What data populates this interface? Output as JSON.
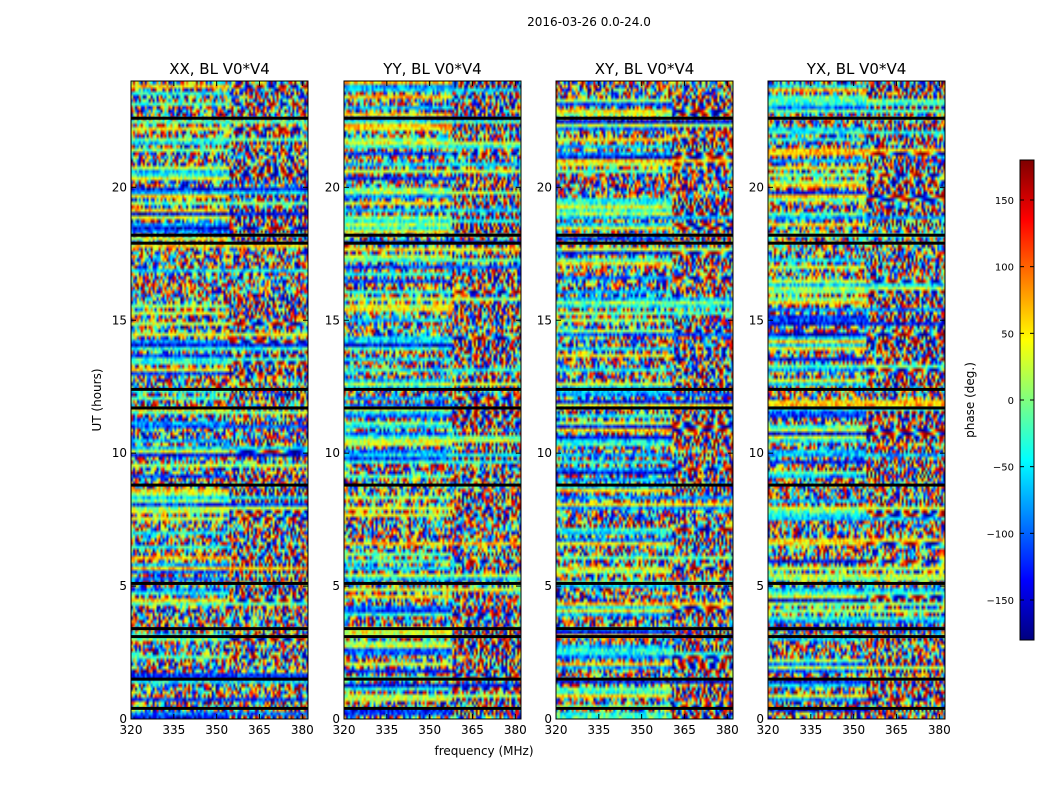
{
  "chart_data": {
    "type": "heatmap",
    "suptitle": "2016-03-26 0.0-24.0",
    "xlabel": "frequency (MHz)",
    "ylabel": "UT (hours)",
    "xlim": [
      320,
      382
    ],
    "ylim": [
      0,
      24
    ],
    "x_ticks": [
      320,
      335,
      350,
      365,
      380
    ],
    "y_ticks": [
      0,
      5,
      10,
      15,
      20
    ],
    "colormap": "jet",
    "colorbar": {
      "label": "phase (deg.)",
      "range": [
        -180,
        180
      ],
      "ticks": [
        -150,
        -100,
        -50,
        0,
        50,
        100,
        150
      ]
    },
    "panels": [
      {
        "title": "XX, BL V0*V4"
      },
      {
        "title": "YY, BL V0*V4"
      },
      {
        "title": "XY, BL V0*V4"
      },
      {
        "title": "YX, BL V0*V4"
      }
    ],
    "flagged_rows_hours": [
      0.4,
      1.5,
      3.1,
      3.4,
      5.1,
      8.8,
      11.7,
      12.4,
      17.9,
      18.2,
      22.6
    ]
  },
  "colors": {
    "jet_stops": [
      "#00007f",
      "#0000ff",
      "#007fff",
      "#00ffff",
      "#7fff7f",
      "#ffff00",
      "#ff7f00",
      "#ff0000",
      "#7f0000"
    ]
  }
}
